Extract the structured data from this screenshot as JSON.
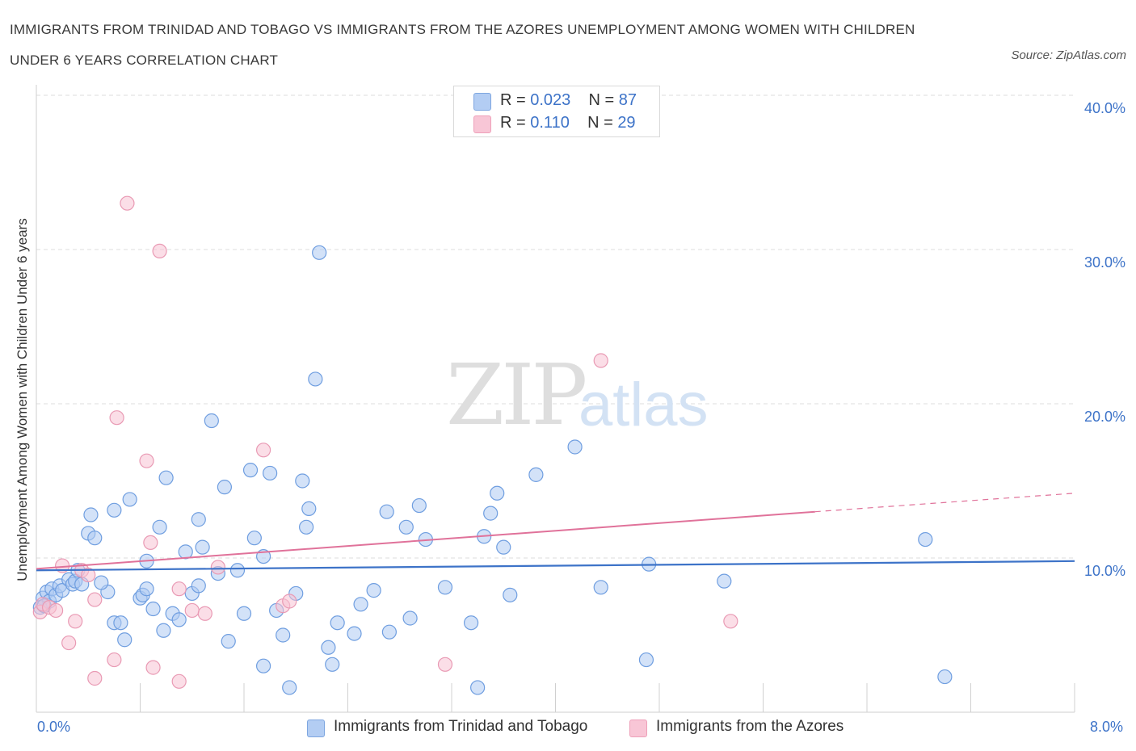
{
  "title": "IMMIGRANTS FROM TRINIDAD AND TOBAGO VS IMMIGRANTS FROM THE AZORES UNEMPLOYMENT AMONG WOMEN WITH CHILDREN UNDER 6 YEARS CORRELATION CHART",
  "source": "Source: ZipAtlas.com",
  "watermark": {
    "zip": "ZIP",
    "atlas": "atlas"
  },
  "legend": {
    "rows": [
      {
        "r_label": "R = ",
        "r_value": "0.023",
        "n_label": "N = ",
        "n_value": "87",
        "color": "#9fc0ef"
      },
      {
        "r_label": "R = ",
        "r_value": " 0.110",
        "n_label": "N = ",
        "n_value": "29",
        "color": "#f5b8cb"
      }
    ]
  },
  "bottom_legend": {
    "blue": "Immigrants from Trinidad and Tobago",
    "pink": "Immigrants from the Azores"
  },
  "axis": {
    "ylabel": "Unemployment Among Women with Children Under 6 years",
    "x_min_label": "0.0%",
    "x_max_label": "8.0%",
    "y_ticks": [
      "10.0%",
      "20.0%",
      "30.0%",
      "40.0%"
    ]
  },
  "colors": {
    "blue": "#3d73c8",
    "blue_fill": "#aecbf2",
    "pink": "#e0729a",
    "pink_fill": "#f7c3d3",
    "grid": "#dcdcdc"
  },
  "chart_data": {
    "type": "scatter",
    "xlim": [
      0,
      8
    ],
    "ylim": [
      0,
      40
    ],
    "grid": true,
    "series": [
      {
        "name": "Immigrants from Trinidad and Tobago",
        "points": [
          [
            0.05,
            7.4
          ],
          [
            0.08,
            7.8
          ],
          [
            0.1,
            7.2
          ],
          [
            0.12,
            8.0
          ],
          [
            0.15,
            7.6
          ],
          [
            0.18,
            8.2
          ],
          [
            0.2,
            7.9
          ],
          [
            0.25,
            8.6
          ],
          [
            0.28,
            8.3
          ],
          [
            0.3,
            8.5
          ],
          [
            0.32,
            9.2
          ],
          [
            0.35,
            8.3
          ],
          [
            0.4,
            11.6
          ],
          [
            0.42,
            12.8
          ],
          [
            0.45,
            11.3
          ],
          [
            0.55,
            7.8
          ],
          [
            0.6,
            13.1
          ],
          [
            0.6,
            5.8
          ],
          [
            0.65,
            5.8
          ],
          [
            0.68,
            4.7
          ],
          [
            0.72,
            13.8
          ],
          [
            0.8,
            7.4
          ],
          [
            0.82,
            7.6
          ],
          [
            0.85,
            8.0
          ],
          [
            0.85,
            9.8
          ],
          [
            0.9,
            6.7
          ],
          [
            0.95,
            12.0
          ],
          [
            0.98,
            5.3
          ],
          [
            1.0,
            15.2
          ],
          [
            1.05,
            6.4
          ],
          [
            1.1,
            6.0
          ],
          [
            1.15,
            10.4
          ],
          [
            1.2,
            7.7
          ],
          [
            1.25,
            8.2
          ],
          [
            1.25,
            12.5
          ],
          [
            1.28,
            10.7
          ],
          [
            1.35,
            18.9
          ],
          [
            1.4,
            9.0
          ],
          [
            1.45,
            14.6
          ],
          [
            1.48,
            4.6
          ],
          [
            1.55,
            9.2
          ],
          [
            1.6,
            6.4
          ],
          [
            1.65,
            15.7
          ],
          [
            1.68,
            11.3
          ],
          [
            1.75,
            10.1
          ],
          [
            1.75,
            3.0
          ],
          [
            1.8,
            15.5
          ],
          [
            1.85,
            6.6
          ],
          [
            1.9,
            5.0
          ],
          [
            1.95,
            1.6
          ],
          [
            2.0,
            7.7
          ],
          [
            2.05,
            15.0
          ],
          [
            2.08,
            12.0
          ],
          [
            2.1,
            13.2
          ],
          [
            2.15,
            21.6
          ],
          [
            2.18,
            29.8
          ],
          [
            2.25,
            4.2
          ],
          [
            2.28,
            3.1
          ],
          [
            2.32,
            5.8
          ],
          [
            2.45,
            5.1
          ],
          [
            2.5,
            7.0
          ],
          [
            2.6,
            7.9
          ],
          [
            2.7,
            13.0
          ],
          [
            2.72,
            5.2
          ],
          [
            2.85,
            12.0
          ],
          [
            2.88,
            6.1
          ],
          [
            2.95,
            13.4
          ],
          [
            3.0,
            11.2
          ],
          [
            3.15,
            8.1
          ],
          [
            3.35,
            5.8
          ],
          [
            3.4,
            1.6
          ],
          [
            3.45,
            11.4
          ],
          [
            3.5,
            12.9
          ],
          [
            3.55,
            14.2
          ],
          [
            3.6,
            10.7
          ],
          [
            3.65,
            7.6
          ],
          [
            3.85,
            15.4
          ],
          [
            4.15,
            17.2
          ],
          [
            4.35,
            8.1
          ],
          [
            4.7,
            3.4
          ],
          [
            4.72,
            9.6
          ],
          [
            5.3,
            8.5
          ],
          [
            6.85,
            11.2
          ],
          [
            7.0,
            2.3
          ],
          [
            0.03,
            6.8
          ],
          [
            0.06,
            6.9
          ],
          [
            0.5,
            8.4
          ]
        ]
      },
      {
        "name": "Immigrants from the Azores",
        "points": [
          [
            0.03,
            6.5
          ],
          [
            0.05,
            7.0
          ],
          [
            0.1,
            6.8
          ],
          [
            0.15,
            6.6
          ],
          [
            0.2,
            9.5
          ],
          [
            0.25,
            4.5
          ],
          [
            0.3,
            5.9
          ],
          [
            0.35,
            9.2
          ],
          [
            0.4,
            8.9
          ],
          [
            0.45,
            7.3
          ],
          [
            0.45,
            2.2
          ],
          [
            0.6,
            3.4
          ],
          [
            0.62,
            19.1
          ],
          [
            0.7,
            33.0
          ],
          [
            0.85,
            16.3
          ],
          [
            0.88,
            11.0
          ],
          [
            0.9,
            2.9
          ],
          [
            0.95,
            29.9
          ],
          [
            1.1,
            8.0
          ],
          [
            1.1,
            2.0
          ],
          [
            1.2,
            6.6
          ],
          [
            1.3,
            6.4
          ],
          [
            1.4,
            9.4
          ],
          [
            1.75,
            17.0
          ],
          [
            1.9,
            6.9
          ],
          [
            1.95,
            7.2
          ],
          [
            3.15,
            3.1
          ],
          [
            4.35,
            22.8
          ],
          [
            5.35,
            5.9
          ]
        ]
      }
    ],
    "trend_lines": [
      {
        "series": "Immigrants from Trinidad and Tobago",
        "x": [
          0,
          8
        ],
        "y": [
          9.2,
          9.8
        ]
      },
      {
        "series": "Immigrants from the Azores",
        "x": [
          0,
          6.0
        ],
        "y": [
          9.3,
          13.0
        ]
      },
      {
        "series": "Immigrants from the Azores",
        "x": [
          6.0,
          8.0
        ],
        "y": [
          13.0,
          14.2
        ],
        "style": "dashed"
      }
    ]
  }
}
